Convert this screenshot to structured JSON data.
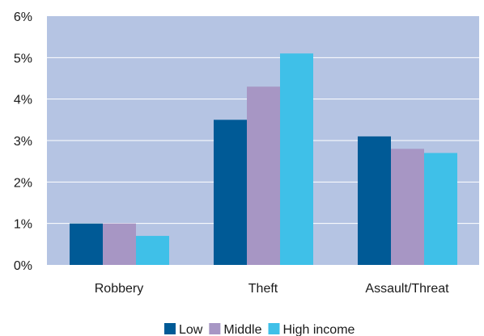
{
  "chart_data": {
    "type": "bar",
    "categories": [
      "Robbery",
      "Theft",
      "Assault/Threat"
    ],
    "series": [
      {
        "name": "Low",
        "values": [
          1.0,
          3.5,
          3.1
        ],
        "color": "#005a96"
      },
      {
        "name": "Middle",
        "values": [
          1.0,
          4.3,
          2.8
        ],
        "color": "#a796c4"
      },
      {
        "name": "High income",
        "values": [
          0.7,
          5.1,
          2.7
        ],
        "color": "#3fc0e8"
      }
    ],
    "ylim": [
      0,
      6
    ],
    "yticks": [
      0,
      1,
      2,
      3,
      4,
      5,
      6
    ],
    "ytick_labels": [
      "0%",
      "1%",
      "2%",
      "3%",
      "4%",
      "5%",
      "6%"
    ],
    "title": "",
    "xlabel": "",
    "ylabel": "",
    "plot_background": "#b5c4e3",
    "grid": true,
    "gridline_color": "#ffffff",
    "legend_position": "bottom-center"
  }
}
